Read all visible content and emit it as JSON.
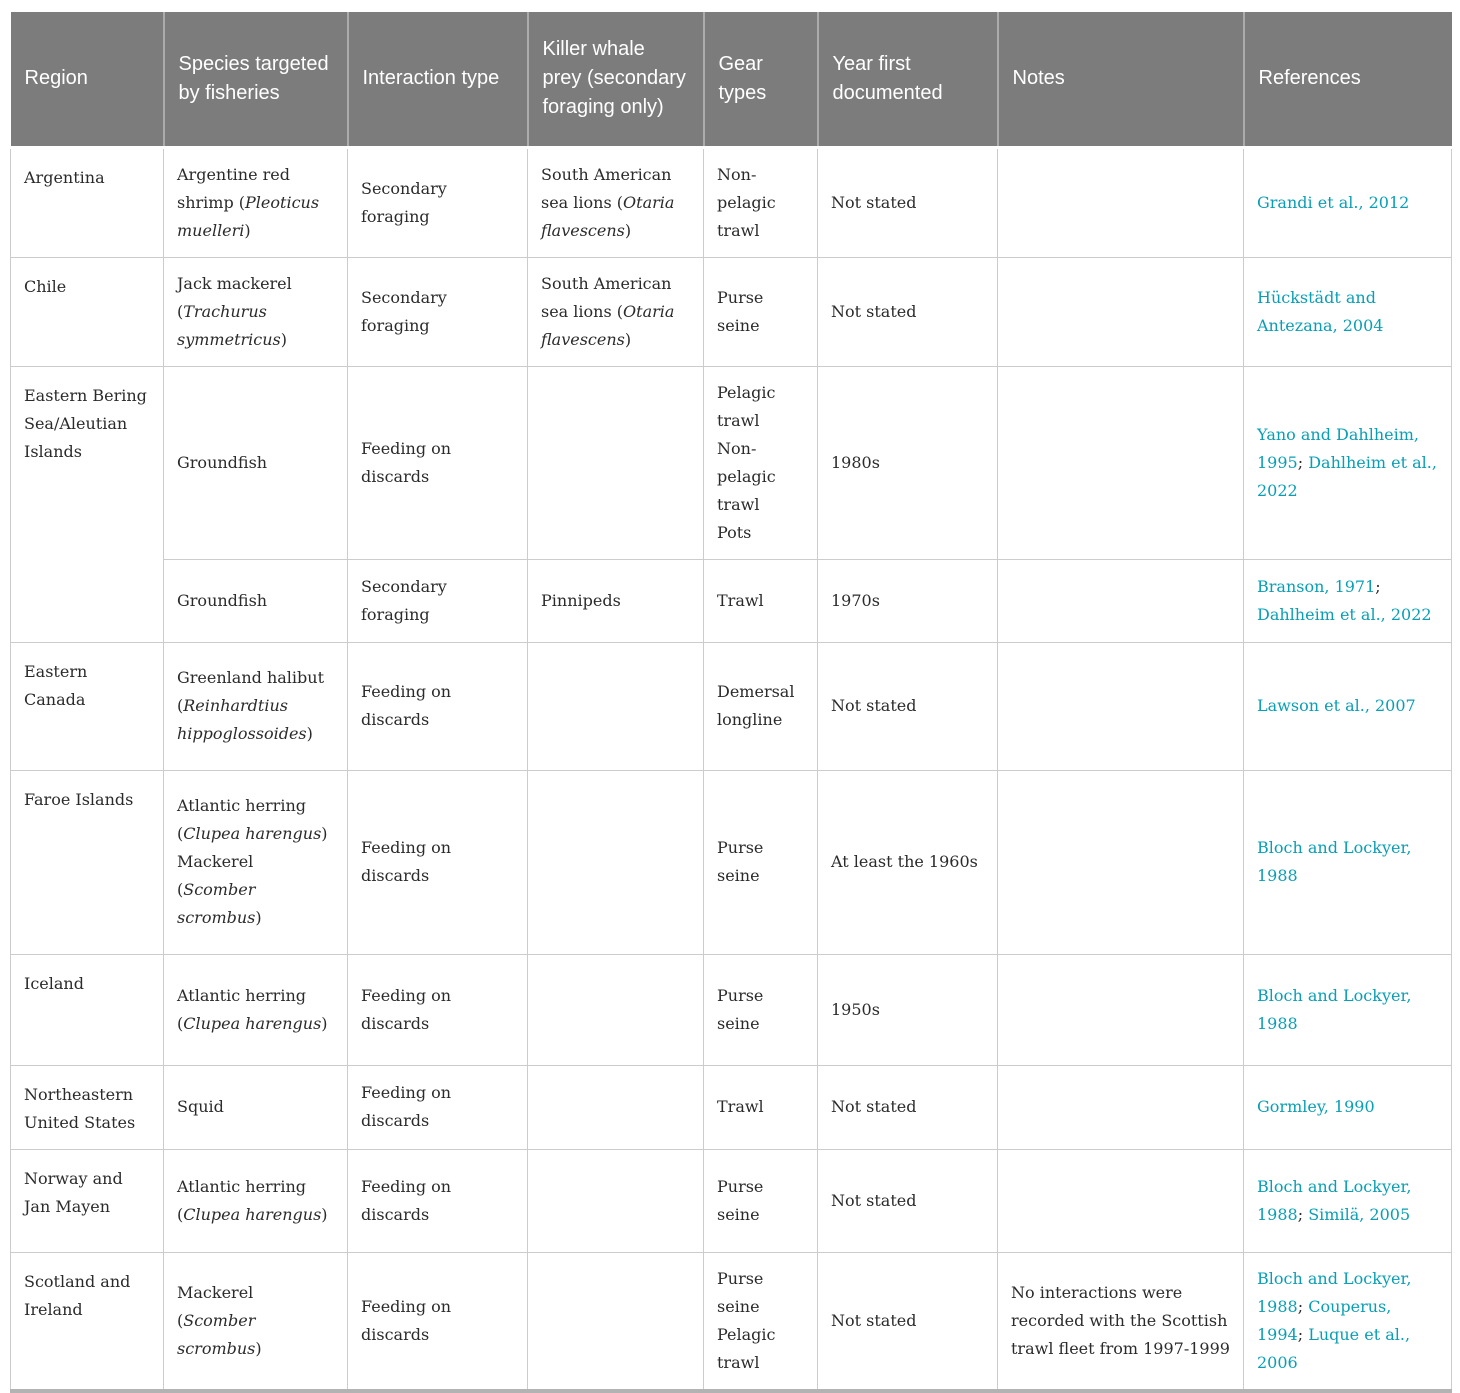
{
  "colors": {
    "header_bg": "#7c7c7c",
    "header_text": "#ffffff",
    "body_text": "#2b2b2b",
    "link": "#089fb5",
    "grid_line": "#cccccc"
  },
  "table": {
    "columns": [
      "Region",
      "Species targeted by fisheries",
      "Interaction type",
      "Killer whale prey (secondary foraging only)",
      "Gear types",
      "Year first documented",
      "Notes",
      "References"
    ],
    "rows": [
      {
        "region": "Argentina",
        "region_rowspan": 1,
        "species": [
          "Argentine red shrimp (*Pleoticus muelleri*)"
        ],
        "interaction_type": "Secondary foraging",
        "killer_whale_prey": "South American sea lions (*Otaria flavescens*)",
        "gear_types": [
          "Non-pelagic trawl"
        ],
        "year_first_documented": "Not stated",
        "notes": "",
        "references": [
          "Grandi et al., 2012"
        ]
      },
      {
        "region": "Chile",
        "region_rowspan": 1,
        "species": [
          "Jack mackerel (*Trachurus symmetricus*)"
        ],
        "interaction_type": "Secondary foraging",
        "killer_whale_prey": "South American sea lions (*Otaria flavescens*)",
        "gear_types": [
          "Purse seine"
        ],
        "year_first_documented": "Not stated",
        "notes": "",
        "references": [
          "Hückstädt and Antezana, 2004"
        ]
      },
      {
        "region": "Eastern Bering Sea/Aleutian Islands",
        "region_rowspan": 2,
        "species": [
          "Groundfish"
        ],
        "interaction_type": "Feeding on discards",
        "killer_whale_prey": "",
        "gear_types": [
          "Pelagic trawl",
          "Non-pelagic trawl",
          "Pots"
        ],
        "year_first_documented": "1980s",
        "notes": "",
        "references": [
          "Yano and Dahlheim, 1995",
          "Dahlheim et al., 2022"
        ]
      },
      {
        "region": null,
        "region_rowspan": 0,
        "species": [
          "Groundfish"
        ],
        "interaction_type": "Secondary foraging",
        "killer_whale_prey": "Pinnipeds",
        "gear_types": [
          "Trawl"
        ],
        "year_first_documented": "1970s",
        "notes": "",
        "references": [
          "Branson, 1971",
          "Dahlheim et al., 2022"
        ]
      },
      {
        "region": "Eastern Canada",
        "region_rowspan": 1,
        "species": [
          "Greenland halibut (*Reinhardtius hippoglossoides*)"
        ],
        "interaction_type": "Feeding on discards",
        "killer_whale_prey": "",
        "gear_types": [
          "Demersal longline"
        ],
        "year_first_documented": "Not stated",
        "notes": "",
        "references": [
          "Lawson et al., 2007"
        ]
      },
      {
        "region": "Faroe Islands",
        "region_rowspan": 1,
        "species": [
          "Atlantic herring (*Clupea harengus*)",
          "Mackerel (*Scomber scrombus*)"
        ],
        "interaction_type": "Feeding on discards",
        "killer_whale_prey": "",
        "gear_types": [
          "Purse seine"
        ],
        "year_first_documented": "At least the 1960s",
        "notes": "",
        "references": [
          "Bloch and Lockyer, 1988"
        ]
      },
      {
        "region": "Iceland",
        "region_rowspan": 1,
        "species": [
          "Atlantic herring (*Clupea harengus*)"
        ],
        "interaction_type": "Feeding on discards",
        "killer_whale_prey": "",
        "gear_types": [
          "Purse seine"
        ],
        "year_first_documented": "1950s",
        "notes": "",
        "references": [
          "Bloch and Lockyer, 1988"
        ]
      },
      {
        "region": "Northeastern United States",
        "region_rowspan": 1,
        "species": [
          "Squid"
        ],
        "interaction_type": "Feeding on discards",
        "killer_whale_prey": "",
        "gear_types": [
          "Trawl"
        ],
        "year_first_documented": "Not stated",
        "notes": "",
        "references": [
          "Gormley, 1990"
        ]
      },
      {
        "region": "Norway and Jan Mayen",
        "region_rowspan": 1,
        "species": [
          "Atlantic herring (*Clupea harengus*)"
        ],
        "interaction_type": "Feeding on discards",
        "killer_whale_prey": "",
        "gear_types": [
          "Purse seine"
        ],
        "year_first_documented": "Not stated",
        "notes": "",
        "references": [
          "Bloch and Lockyer, 1988",
          "Similä, 2005"
        ]
      },
      {
        "region": "Scotland and Ireland",
        "region_rowspan": 1,
        "species": [
          "Mackerel (*Scomber scrombus*)"
        ],
        "interaction_type": "Feeding on discards",
        "killer_whale_prey": "",
        "gear_types": [
          "Purse seine",
          "Pelagic trawl"
        ],
        "year_first_documented": "Not stated",
        "notes": "No interactions were recorded with the Scottish trawl fleet from 1997-1999",
        "references": [
          "Bloch and Lockyer, 1988",
          "Couperus, 1994",
          "Luque et al., 2006"
        ]
      }
    ]
  }
}
